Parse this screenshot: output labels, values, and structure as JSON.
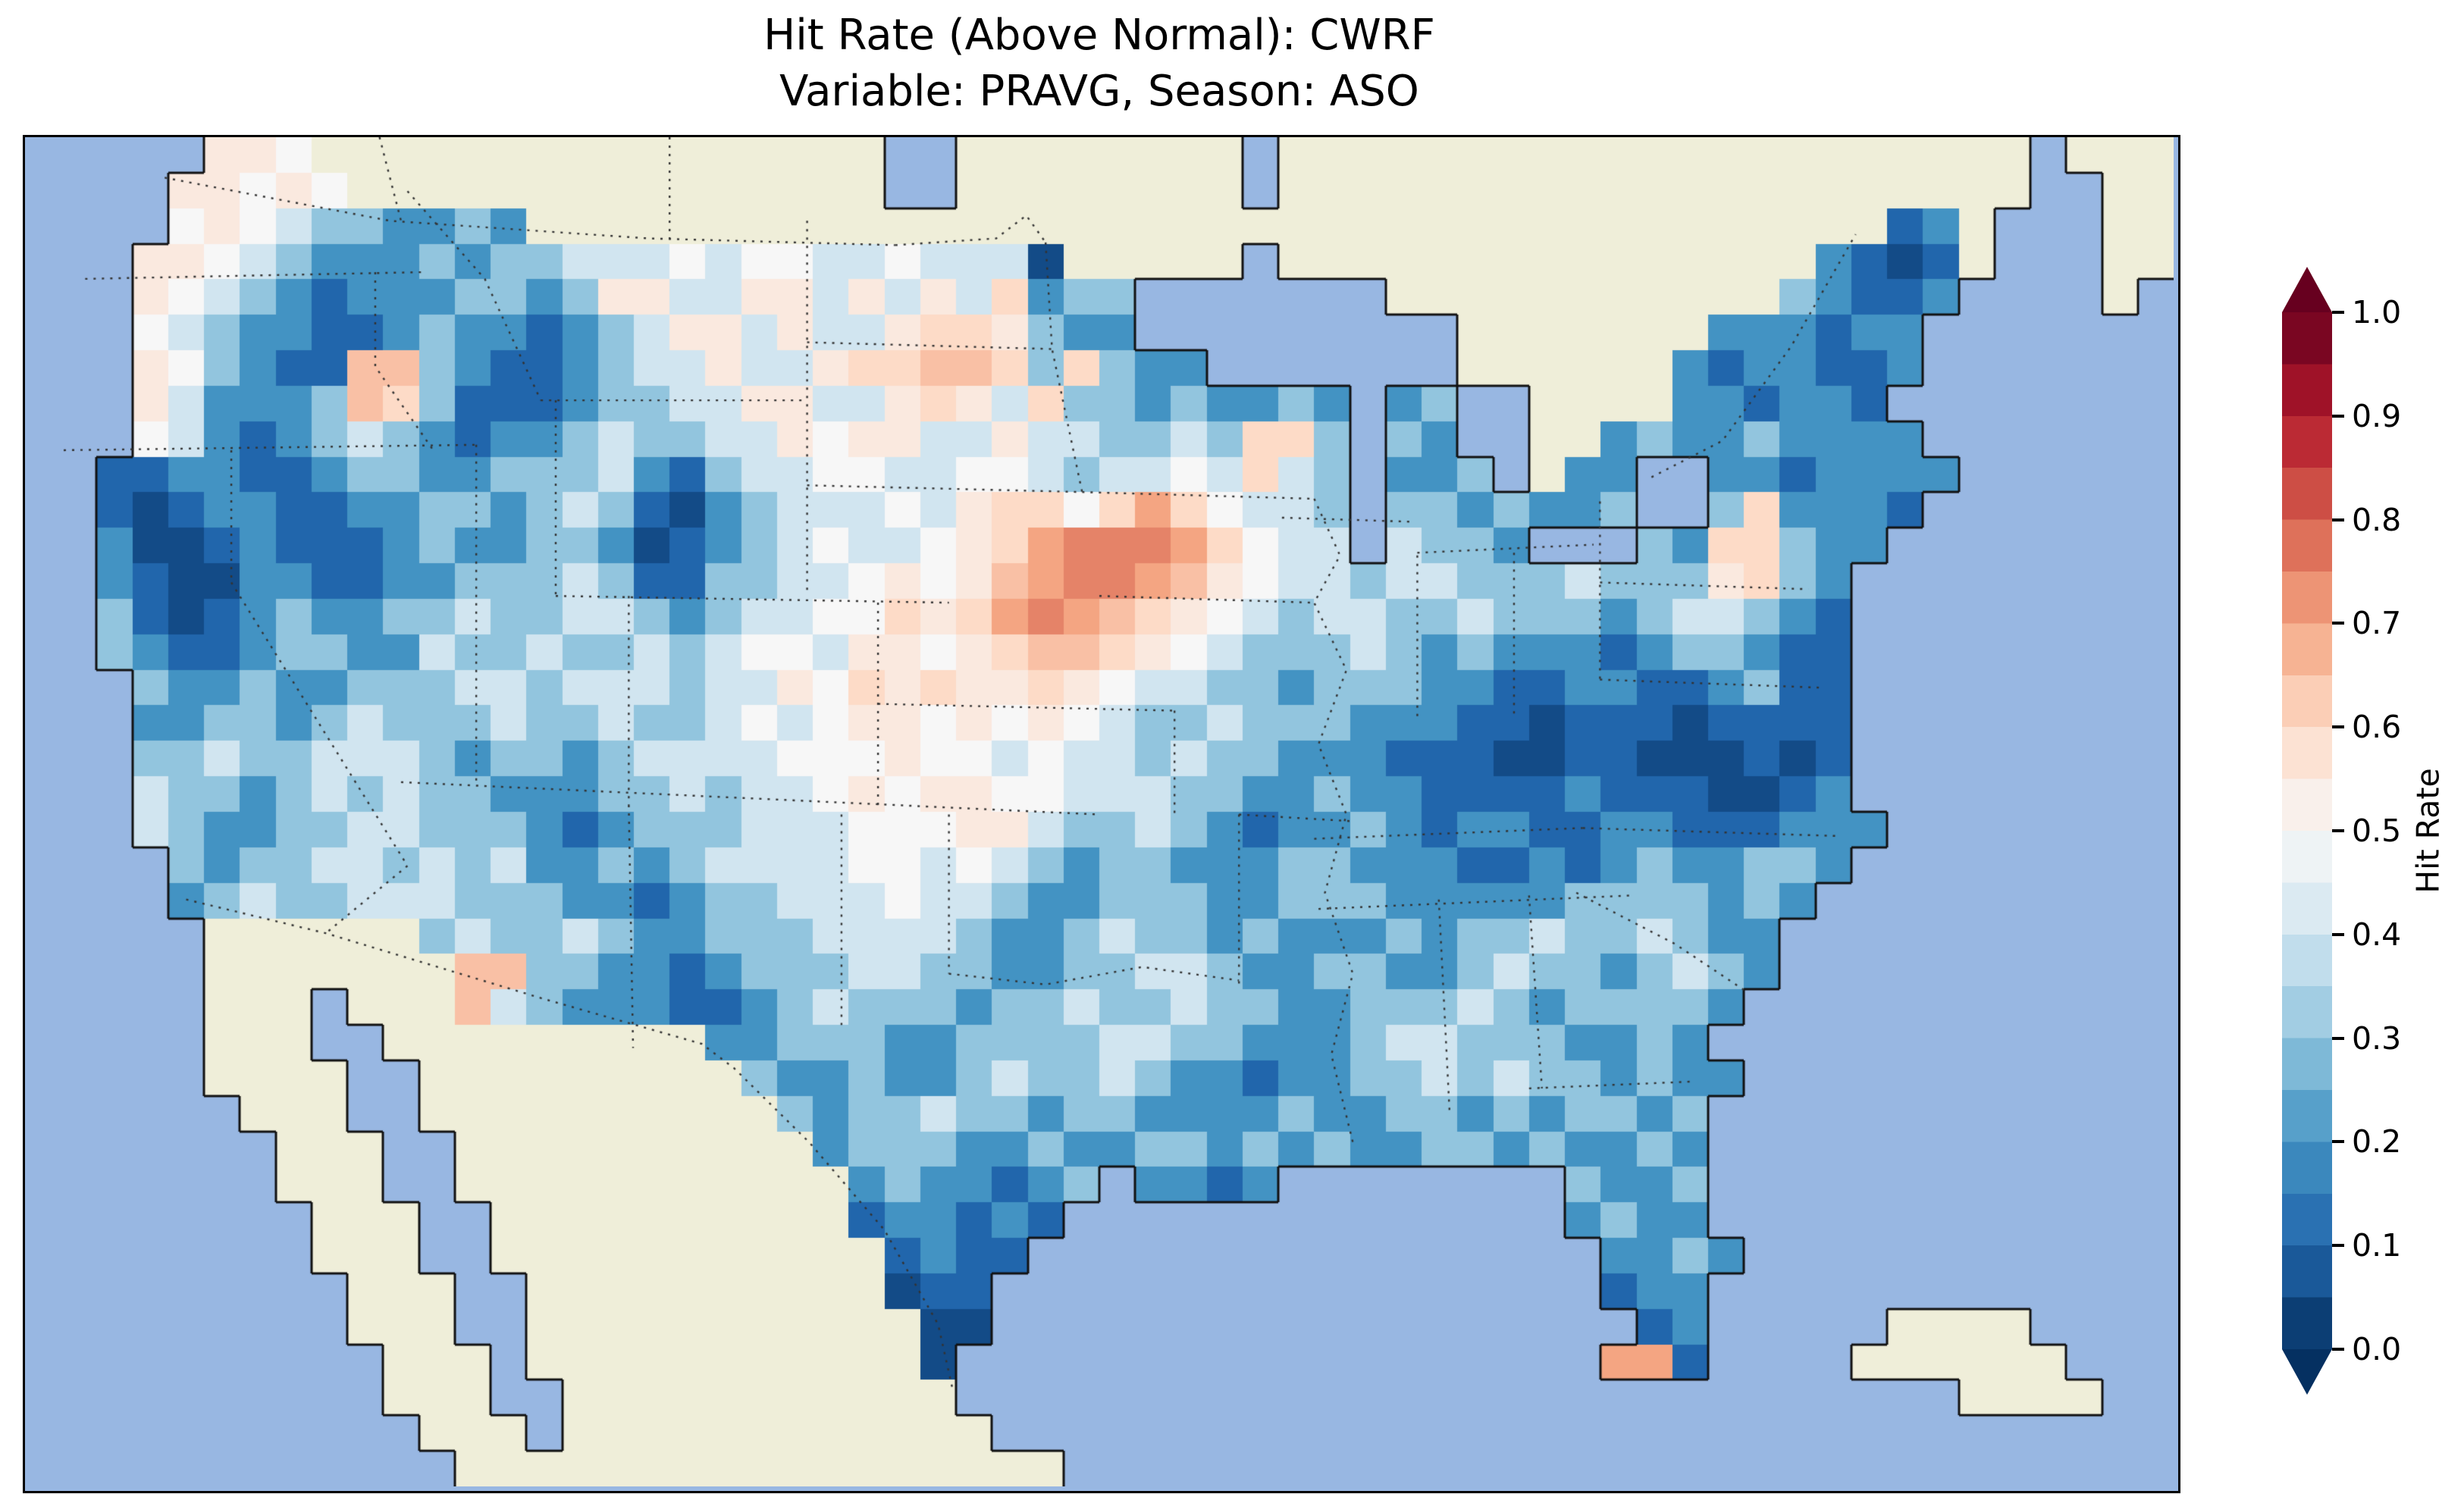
{
  "title": {
    "line1": "Hit Rate (Above Normal): CWRF",
    "line2": "Variable: PRAVG, Season: ASO"
  },
  "colorbar": {
    "label": "Hit Rate",
    "min": 0.0,
    "max": 1.0,
    "ticks": [
      "0.0",
      "0.1",
      "0.2",
      "0.3",
      "0.4",
      "0.5",
      "0.6",
      "0.7",
      "0.8",
      "0.9",
      "1.0"
    ],
    "extended_arrows": true
  },
  "map": {
    "ocean_color": "#98b7e2",
    "land_color": "#efeed9",
    "coast_color": "#111111",
    "border_color": "#333333",
    "borders": [
      {
        "name": "us-canada-border-west",
        "points": [
          [
            0.065,
            0.03
          ],
          [
            0.17,
            0.062
          ],
          [
            0.29,
            0.075
          ],
          [
            0.405,
            0.08
          ]
        ]
      },
      {
        "name": "us-canada-border-minnesota",
        "points": [
          [
            0.405,
            0.08
          ],
          [
            0.452,
            0.075
          ],
          [
            0.466,
            0.058
          ],
          [
            0.475,
            0.078
          ]
        ]
      },
      {
        "name": "canada-province-border-1",
        "points": [
          [
            0.165,
            0.0
          ],
          [
            0.175,
            0.062
          ]
        ]
      },
      {
        "name": "canada-province-border-2",
        "points": [
          [
            0.3,
            0.0
          ],
          [
            0.3,
            0.075
          ]
        ]
      },
      {
        "name": "us-canada-border-northeast",
        "points": [
          [
            0.757,
            0.252
          ],
          [
            0.79,
            0.225
          ],
          [
            0.822,
            0.155
          ],
          [
            0.852,
            0.072
          ]
        ]
      },
      {
        "name": "us-mexico-border",
        "points": [
          [
            0.075,
            0.565
          ],
          [
            0.14,
            0.59
          ],
          [
            0.24,
            0.638
          ],
          [
            0.315,
            0.672
          ],
          [
            0.33,
            0.69
          ],
          [
            0.365,
            0.745
          ],
          [
            0.4,
            0.81
          ],
          [
            0.425,
            0.88
          ],
          [
            0.432,
            0.93
          ]
        ]
      },
      {
        "name": "state-border-wa-or",
        "points": [
          [
            0.028,
            0.105
          ],
          [
            0.186,
            0.1
          ]
        ]
      },
      {
        "name": "state-border-or-ca-nv",
        "points": [
          [
            0.018,
            0.232
          ],
          [
            0.21,
            0.228
          ]
        ]
      },
      {
        "name": "state-border-or-id",
        "points": [
          [
            0.163,
            0.1
          ],
          [
            0.163,
            0.17
          ],
          [
            0.19,
            0.232
          ]
        ]
      },
      {
        "name": "state-border-id-mt",
        "points": [
          [
            0.178,
            0.04
          ],
          [
            0.214,
            0.105
          ],
          [
            0.24,
            0.195
          ]
        ]
      },
      {
        "name": "state-border-mt-east",
        "points": [
          [
            0.364,
            0.062
          ],
          [
            0.364,
            0.34
          ]
        ]
      },
      {
        "name": "state-border-mt-wy",
        "points": [
          [
            0.24,
            0.195
          ],
          [
            0.364,
            0.195
          ]
        ]
      },
      {
        "name": "state-border-wy-west",
        "points": [
          [
            0.247,
            0.195
          ],
          [
            0.247,
            0.34
          ]
        ]
      },
      {
        "name": "state-border-wy-co-ne",
        "points": [
          [
            0.247,
            0.34
          ],
          [
            0.43,
            0.345
          ]
        ]
      },
      {
        "name": "state-border-nd-sd",
        "points": [
          [
            0.364,
            0.152
          ],
          [
            0.478,
            0.157
          ]
        ]
      },
      {
        "name": "state-border-sd-ne",
        "points": [
          [
            0.364,
            0.258
          ],
          [
            0.492,
            0.263
          ]
        ]
      },
      {
        "name": "state-border-mn-west",
        "points": [
          [
            0.475,
            0.078
          ],
          [
            0.478,
            0.157
          ],
          [
            0.492,
            0.263
          ]
        ]
      },
      {
        "name": "state-border-ne-ks",
        "points": [
          [
            0.397,
            0.42
          ],
          [
            0.535,
            0.425
          ]
        ]
      },
      {
        "name": "state-border-co-west",
        "points": [
          [
            0.281,
            0.34
          ],
          [
            0.281,
            0.495
          ]
        ]
      },
      {
        "name": "state-border-co-east",
        "points": [
          [
            0.397,
            0.345
          ],
          [
            0.397,
            0.495
          ]
        ]
      },
      {
        "name": "state-border-37n",
        "points": [
          [
            0.175,
            0.478
          ],
          [
            0.5,
            0.502
          ]
        ]
      },
      {
        "name": "state-border-ut-nv",
        "points": [
          [
            0.21,
            0.228
          ],
          [
            0.21,
            0.478
          ]
        ]
      },
      {
        "name": "state-border-ca-nv-diagonal",
        "points": [
          [
            0.096,
            0.33
          ],
          [
            0.178,
            0.54
          ]
        ]
      },
      {
        "name": "state-border-ca-nv-north",
        "points": [
          [
            0.096,
            0.232
          ],
          [
            0.096,
            0.33
          ]
        ]
      },
      {
        "name": "state-border-ca-az",
        "points": [
          [
            0.178,
            0.54
          ],
          [
            0.14,
            0.59
          ]
        ]
      },
      {
        "name": "state-border-az-nm",
        "points": [
          [
            0.281,
            0.495
          ],
          [
            0.283,
            0.675
          ]
        ]
      },
      {
        "name": "state-border-nm-tx",
        "points": [
          [
            0.38,
            0.502
          ],
          [
            0.38,
            0.658
          ]
        ]
      },
      {
        "name": "state-border-tx-panhandle",
        "points": [
          [
            0.43,
            0.502
          ],
          [
            0.43,
            0.62
          ]
        ]
      },
      {
        "name": "state-border-red-river",
        "points": [
          [
            0.43,
            0.62
          ],
          [
            0.475,
            0.628
          ],
          [
            0.52,
            0.615
          ],
          [
            0.565,
            0.625
          ]
        ]
      },
      {
        "name": "state-border-ks-mo",
        "points": [
          [
            0.535,
            0.425
          ],
          [
            0.535,
            0.502
          ]
        ]
      },
      {
        "name": "state-border-ok-ar",
        "points": [
          [
            0.565,
            0.502
          ],
          [
            0.565,
            0.628
          ]
        ]
      },
      {
        "name": "state-border-mo-ar",
        "points": [
          [
            0.565,
            0.502
          ],
          [
            0.618,
            0.507
          ]
        ]
      },
      {
        "name": "state-border-ia-mo",
        "points": [
          [
            0.5,
            0.34
          ],
          [
            0.6,
            0.345
          ]
        ]
      },
      {
        "name": "state-border-mn-ia",
        "points": [
          [
            0.492,
            0.263
          ],
          [
            0.6,
            0.268
          ]
        ]
      },
      {
        "name": "state-border-wi-il",
        "points": [
          [
            0.585,
            0.282
          ],
          [
            0.645,
            0.285
          ]
        ]
      },
      {
        "name": "state-border-mississippi-river",
        "points": [
          [
            0.6,
            0.268
          ],
          [
            0.612,
            0.31
          ],
          [
            0.6,
            0.345
          ],
          [
            0.615,
            0.395
          ],
          [
            0.602,
            0.45
          ],
          [
            0.615,
            0.502
          ],
          [
            0.605,
            0.56
          ],
          [
            0.618,
            0.62
          ],
          [
            0.608,
            0.68
          ],
          [
            0.618,
            0.745
          ]
        ]
      },
      {
        "name": "state-border-il-in",
        "points": [
          [
            0.648,
            0.31
          ],
          [
            0.648,
            0.432
          ]
        ]
      },
      {
        "name": "state-border-in-oh",
        "points": [
          [
            0.693,
            0.308
          ],
          [
            0.693,
            0.43
          ]
        ]
      },
      {
        "name": "state-border-mi-in-oh",
        "points": [
          [
            0.648,
            0.308
          ],
          [
            0.73,
            0.302
          ]
        ]
      },
      {
        "name": "state-border-ky-tn",
        "points": [
          [
            0.6,
            0.52
          ],
          [
            0.725,
            0.512
          ]
        ]
      },
      {
        "name": "state-border-tn-al",
        "points": [
          [
            0.602,
            0.572
          ],
          [
            0.748,
            0.562
          ]
        ]
      },
      {
        "name": "state-border-ms-al",
        "points": [
          [
            0.658,
            0.565
          ],
          [
            0.663,
            0.722
          ]
        ]
      },
      {
        "name": "state-border-al-ga",
        "points": [
          [
            0.7,
            0.562
          ],
          [
            0.706,
            0.705
          ]
        ]
      },
      {
        "name": "state-border-ga-fl",
        "points": [
          [
            0.7,
            0.705
          ],
          [
            0.775,
            0.7
          ]
        ]
      },
      {
        "name": "state-border-va-nc",
        "points": [
          [
            0.725,
            0.512
          ],
          [
            0.845,
            0.518
          ]
        ]
      },
      {
        "name": "state-border-nc-sc",
        "points": [
          [
            0.722,
            0.56
          ],
          [
            0.768,
            0.598
          ],
          [
            0.8,
            0.632
          ]
        ]
      },
      {
        "name": "state-border-mason-dixon",
        "points": [
          [
            0.733,
            0.402
          ],
          [
            0.836,
            0.408
          ]
        ]
      },
      {
        "name": "state-border-ny-pa",
        "points": [
          [
            0.733,
            0.33
          ],
          [
            0.83,
            0.335
          ]
        ]
      },
      {
        "name": "state-border-oh-pa",
        "points": [
          [
            0.733,
            0.27
          ],
          [
            0.733,
            0.402
          ]
        ]
      }
    ]
  },
  "chart_data": {
    "type": "heatmap",
    "title": "Hit Rate (Above Normal): CWRF",
    "subtitle": "Variable: PRAVG, Season: ASO",
    "metric": "Hit Rate (Above Normal)",
    "model": "CWRF",
    "variable": "PRAVG",
    "season": "ASO",
    "value_range": [
      0.0,
      1.0
    ],
    "colorbar_ticks": [
      0.0,
      0.1,
      0.2,
      0.3,
      0.4,
      0.5,
      0.6,
      0.7,
      0.8,
      0.9,
      1.0
    ],
    "colormap": {
      "name": "diverging-blue-white-red (RdBu reversed)",
      "anchors": [
        "#053061",
        "#2166ac",
        "#4393c3",
        "#92c5de",
        "#d1e5f0",
        "#f7f7f7",
        "#fddbc7",
        "#f4a582",
        "#d6604d",
        "#b2182b",
        "#67001f"
      ]
    },
    "grid": {
      "cols": 60,
      "rows": 38,
      "cell_legend": {
        ".": "ocean/lake",
        "#": "non-US land",
        "0-K": "hit-rate value = charIndex * 0.05, charset 0123456789ABCDEFGHIJK"
      },
      "charset": "0123456789ABCDEFGHIJK",
      "value_step": 0.05,
      "rows_encoded": [
        ".....BBA################..########.#####################.###",
        "....BBABA###############..########.#####################..##",
        "....ABA8664464######################################24#...##",
        "...BBA864446466888A8AA88A8881#####.###############4212#...##",
        "...BA86424446646BB88BB8B8B8C466.......###########64224....#.",
        "...A86442246442468BB8B88BCCB644.........#######444244.......",
        "...BA6422DD64224688B88BCCDDC6C644.......######4244224.......",
        "...B84446DC622246688BB88BCB8C66464464.46..####442442........",
        "...A84246864244686688BABB88B886686CC6.64..##464464444.......",
        "..22442246644666842688AA88AA8688A8C86.446.#44..4424444......",
        "..2124422446646862146888A8BCCACECA886.6646446..6C4442.......",
        "..41124222464466412468A88ABCEFFFECA88.8664...64CC644........",
        "..421144224466686226688ABABDEFFEDBA886886668666BC64.........",
        "..62124644668668864688AACBCEFEDCBA86886686664688642.........",
        "..642246644866866868AA8BBABCDDCBA866686464442466422.........",
        "...644644666886888688BACBCBBCBA88664666442244224622.........",
        "...44664686668668668A8ABBABABA866866644422122212222.........",
        "...668668886466468888AAABAA8A8868664442221122111212.........",
        "...8664686866444668688ABABBAA8886644644222242221124.........",
        "...86446688666424666888AAABB866864244642442244222444........",
        "....6466886868446468888AA8A864664446644422424644664.........",
        "....46866888666442466888A8864466644666444446666464..........",
        ".....######68668644666888864468664644464668668644...........",
        ".....#######DD66442466688664466886446644686646864...........",
        ".....###.###D86444224686664668668664466686466664............",
        ".....###..#########4466644666688664446886664464.............",
        ".....####..#########6446446866864424466868664644............",
        "......###..##########64668664664444644664646646.............",
        ".......###..##########4666446446646464466464464.............",
        ".......###..###########4644246.4424........6446.............",
        "........###..##########244242..............4644.............",
        "........###..###########2422................4464............",
        ".........###..##########122.................244.............",
        ".........###..###########11..................24.....####....",
        "..........###.###########1..................EE2....######...",
        "..........###..###########............................####..",
        "...........###.############.................................",
        "............#################..............................."
      ]
    },
    "notable_features": [
      "High hit rates (0.6-0.8, orange/red) over Iowa, southern Minnesota and eastern Nebraska",
      "High values also over central Oregon, central New Mexico, central Texas and near Lake Michigan",
      "Very low hit rates (0.0-0.15, dark navy) over Sierra Nevada California, NW Wyoming, Kentucky/Tennessee/Virginia, coastal Maine and south Texas",
      "Two isolated high (salmon) cells near the Florida Keys",
      "Most of the western US and southeast shows below-0.4 (blue) hit rates"
    ]
  }
}
